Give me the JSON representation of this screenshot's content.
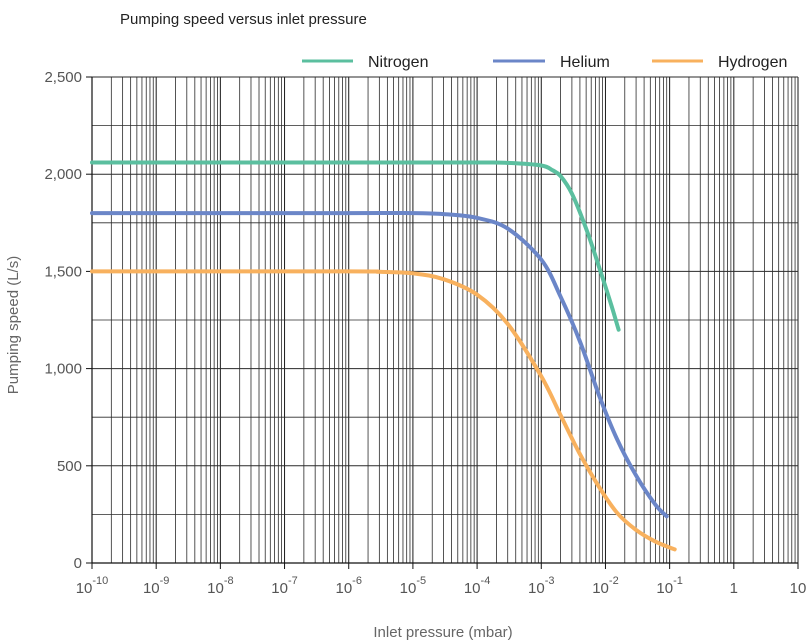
{
  "chart_data": {
    "type": "line",
    "title": "Pumping speed versus inlet pressure",
    "xlabel": "Inlet pressure (mbar)",
    "ylabel": "Pumping speed (L/s)",
    "x_scale": "log",
    "xlim": [
      1e-10,
      10
    ],
    "ylim": [
      0,
      2500
    ],
    "grid": true,
    "legend": "top-right",
    "x_ticks": [
      {
        "base": "10",
        "exp": "-10",
        "value": 1e-10
      },
      {
        "base": "10",
        "exp": "-9",
        "value": 1e-09
      },
      {
        "base": "10",
        "exp": "-8",
        "value": 1e-08
      },
      {
        "base": "10",
        "exp": "-7",
        "value": 1e-07
      },
      {
        "base": "10",
        "exp": "-6",
        "value": 1e-06
      },
      {
        "base": "10",
        "exp": "-5",
        "value": 1e-05
      },
      {
        "base": "10",
        "exp": "-4",
        "value": 0.0001
      },
      {
        "base": "10",
        "exp": "-3",
        "value": 0.001
      },
      {
        "base": "10",
        "exp": "-2",
        "value": 0.01
      },
      {
        "base": "10",
        "exp": "-1",
        "value": 0.1
      },
      {
        "base": "1",
        "exp": "",
        "value": 1
      },
      {
        "base": "10",
        "exp": "",
        "value": 10
      }
    ],
    "y_ticks": [
      {
        "label": "0",
        "value": 0
      },
      {
        "label": "500",
        "value": 500
      },
      {
        "label": "1,000",
        "value": 1000
      },
      {
        "label": "1,500",
        "value": 1500
      },
      {
        "label": "2,000",
        "value": 2000
      },
      {
        "label": "2,500",
        "value": 2500
      }
    ],
    "series": [
      {
        "name": "Nitrogen",
        "color": "#5bbf9f",
        "x": [
          1e-10,
          1e-06,
          0.0001,
          0.0003,
          0.001,
          0.0015,
          0.002,
          0.003,
          0.005,
          0.008,
          0.0125,
          0.016
        ],
        "y": [
          2060,
          2060,
          2060,
          2058,
          2045,
          2020,
          1990,
          1900,
          1720,
          1520,
          1320,
          1200
        ]
      },
      {
        "name": "Helium",
        "color": "#6b86c8",
        "x": [
          1e-10,
          1e-06,
          1e-05,
          3e-05,
          0.0001,
          0.0003,
          0.001,
          0.002,
          0.004,
          0.008,
          0.015,
          0.03,
          0.06,
          0.09
        ],
        "y": [
          1800,
          1800,
          1800,
          1795,
          1775,
          1720,
          1560,
          1370,
          1140,
          860,
          640,
          450,
          300,
          240
        ]
      },
      {
        "name": "Hydrogen",
        "color": "#f8b15e",
        "x": [
          1e-10,
          1e-06,
          3e-06,
          1e-05,
          3e-05,
          0.0001,
          0.0003,
          0.001,
          0.002,
          0.004,
          0.008,
          0.015,
          0.03,
          0.06,
          0.12
        ],
        "y": [
          1500,
          1500,
          1498,
          1490,
          1460,
          1380,
          1230,
          960,
          760,
          560,
          390,
          260,
          170,
          110,
          70
        ]
      }
    ]
  }
}
